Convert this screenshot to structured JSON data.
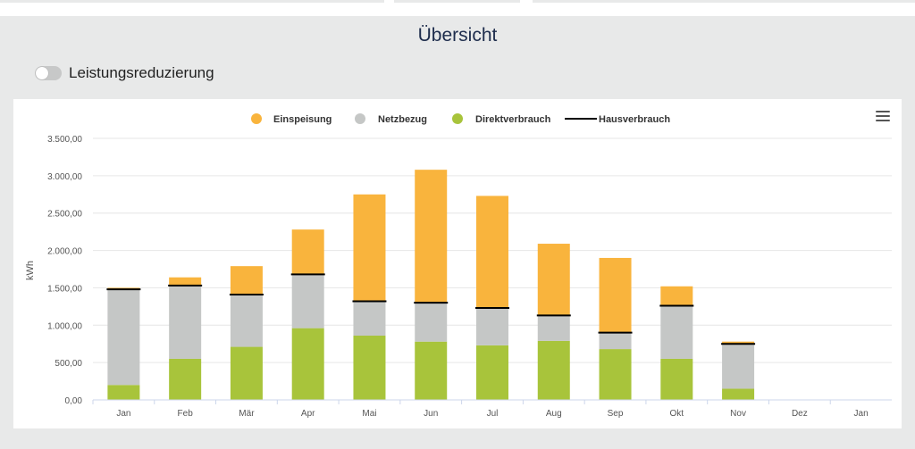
{
  "title": "Übersicht",
  "toggle": {
    "label": "Leistungsreduzierung",
    "on": false
  },
  "colors": {
    "einspeisung": "#f9b43d",
    "netzbezug": "#c5c7c6",
    "direktverbrauch": "#a8c43b",
    "hausverbrauch": "#000000"
  },
  "menu_icon": "hamburger-menu-icon",
  "chart_data": {
    "type": "bar",
    "stacked": true,
    "ylabel": "kWh",
    "ylim": [
      0,
      3500
    ],
    "yticks": [
      "0,00",
      "500,00",
      "1.000,00",
      "1.500,00",
      "2.000,00",
      "2.500,00",
      "3.000,00",
      "3.500,00"
    ],
    "categories": [
      "Jan",
      "Feb",
      "Mär",
      "Apr",
      "Mai",
      "Jun",
      "Jul",
      "Aug",
      "Sep",
      "Okt",
      "Nov",
      "Dez",
      "Jan"
    ],
    "legend_position": "top",
    "grid": true,
    "series": [
      {
        "name": "Einspeisung",
        "type": "bar",
        "values": [
          20,
          110,
          380,
          600,
          1430,
          1780,
          1500,
          960,
          1000,
          260,
          30,
          0,
          0
        ]
      },
      {
        "name": "Netzbezug",
        "type": "bar",
        "values": [
          1280,
          980,
          700,
          720,
          460,
          520,
          500,
          340,
          220,
          710,
          600,
          0,
          0
        ]
      },
      {
        "name": "Direktverbrauch",
        "type": "bar",
        "values": [
          200,
          550,
          710,
          960,
          860,
          780,
          730,
          790,
          680,
          550,
          150,
          0,
          0
        ]
      },
      {
        "name": "Hausverbrauch",
        "type": "line-marker",
        "values": [
          1480,
          1530,
          1410,
          1680,
          1320,
          1300,
          1230,
          1130,
          900,
          1260,
          750,
          null,
          null
        ]
      }
    ]
  }
}
